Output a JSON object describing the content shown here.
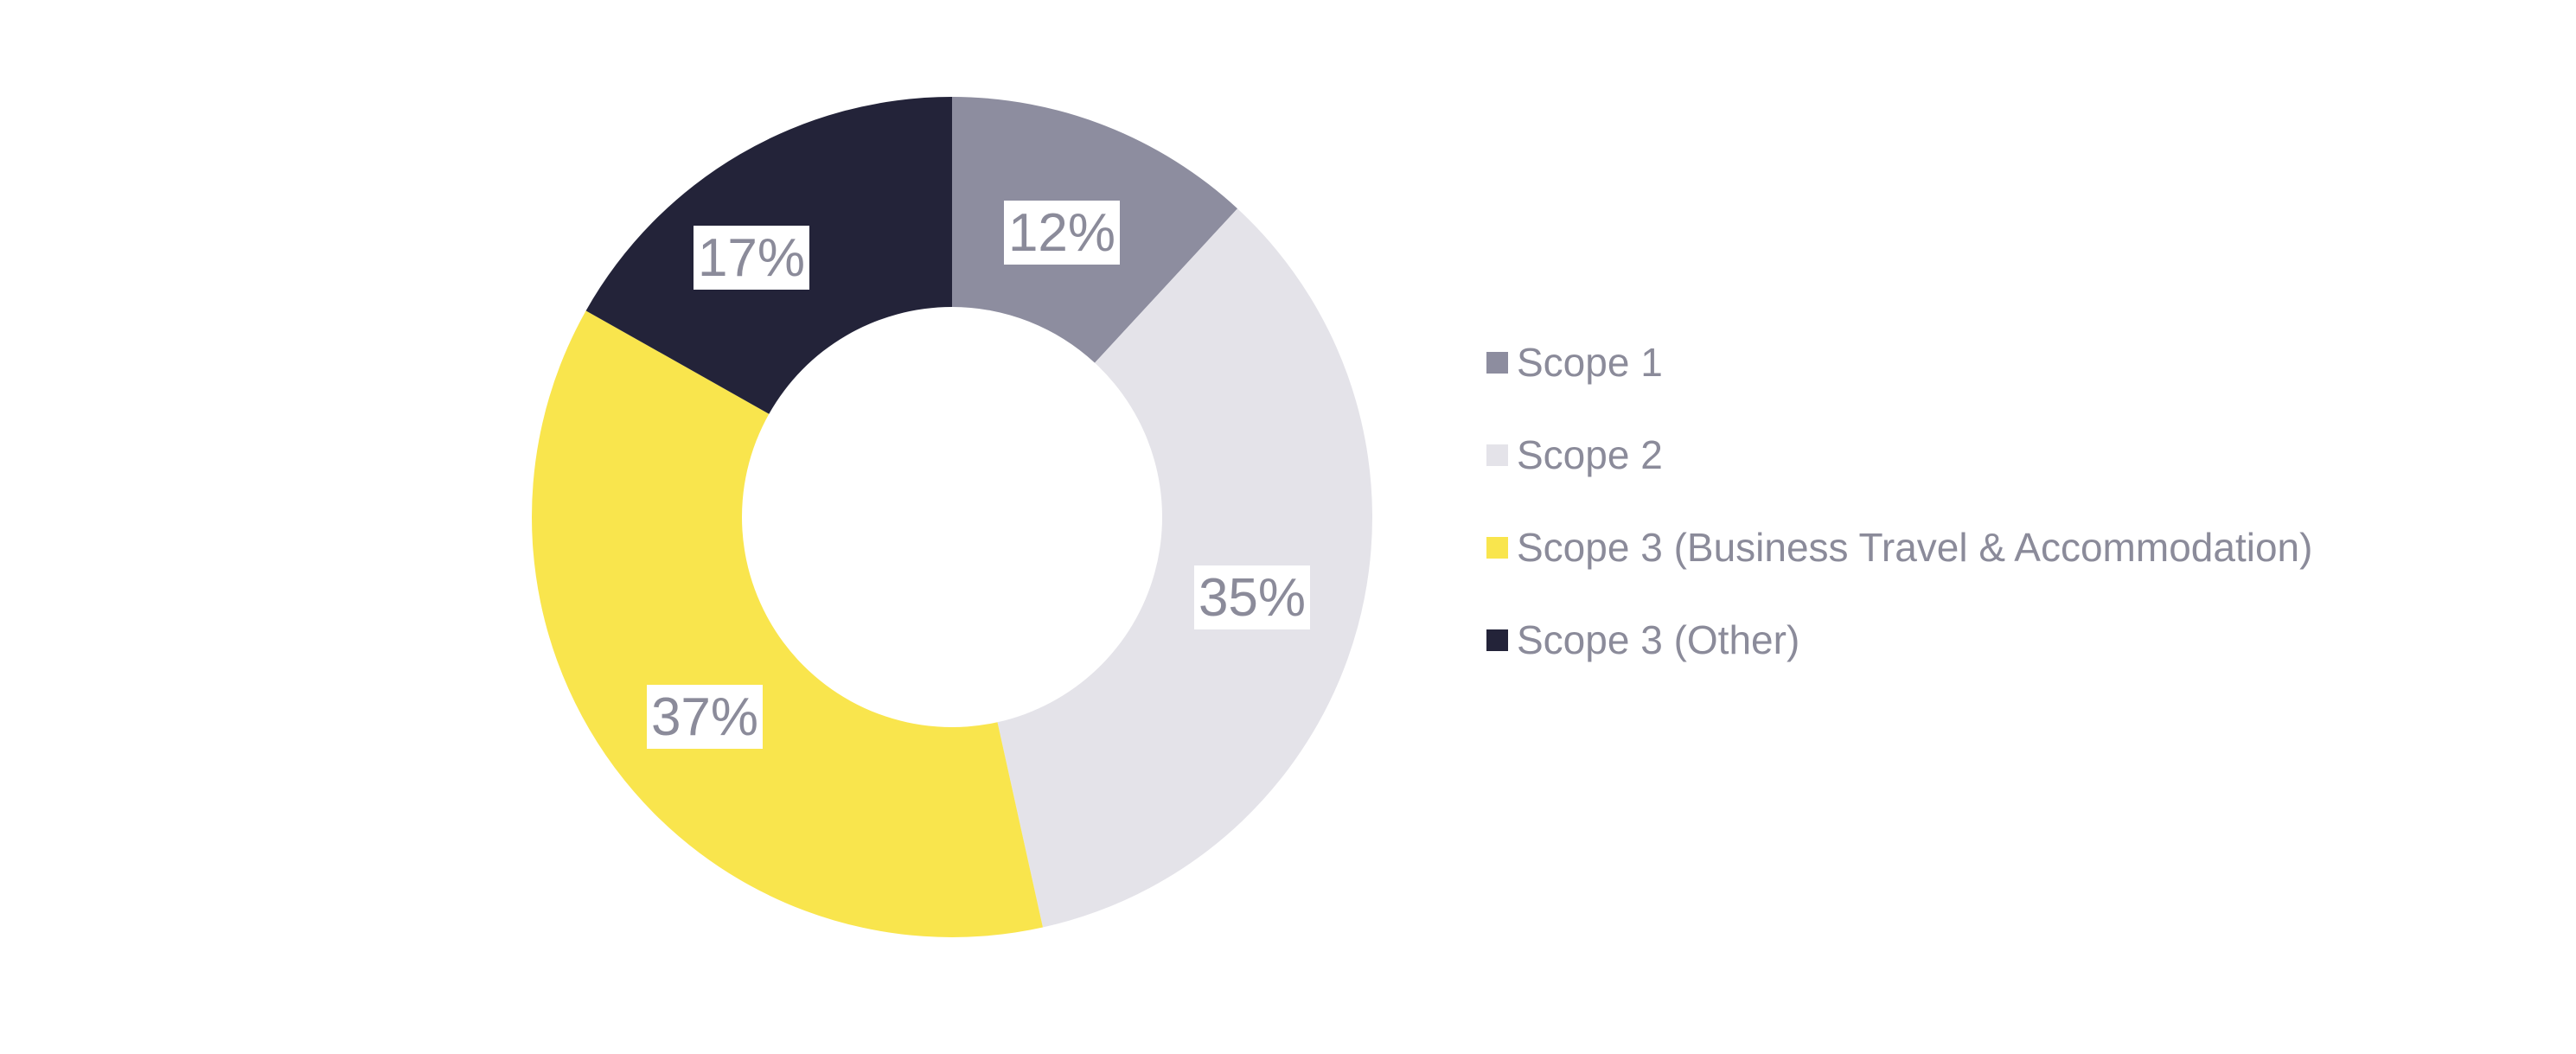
{
  "chart_data": {
    "type": "pie",
    "subtype": "donut",
    "title": "",
    "unit": "%",
    "inner_radius_pct": 50,
    "start_angle_deg": 0,
    "direction": "clockwise",
    "legend_position": "right",
    "background_color": "#FFFFFF",
    "label_text_color": "#8B8B9A",
    "label_box_color": "#FFFFFF",
    "series": [
      {
        "name": "Scope 1",
        "value": 12,
        "display_label": "12%",
        "color": "#8D8D9F"
      },
      {
        "name": "Scope 2",
        "value": 35,
        "display_label": "35%",
        "color": "#E4E3E9"
      },
      {
        "name": "Scope 3 (Business Travel & Accommodation)",
        "value": 37,
        "display_label": "37%",
        "color": "#F9E54D"
      },
      {
        "name": "Scope 3 (Other)",
        "value": 17,
        "display_label": "17%",
        "color": "#232339"
      }
    ]
  }
}
